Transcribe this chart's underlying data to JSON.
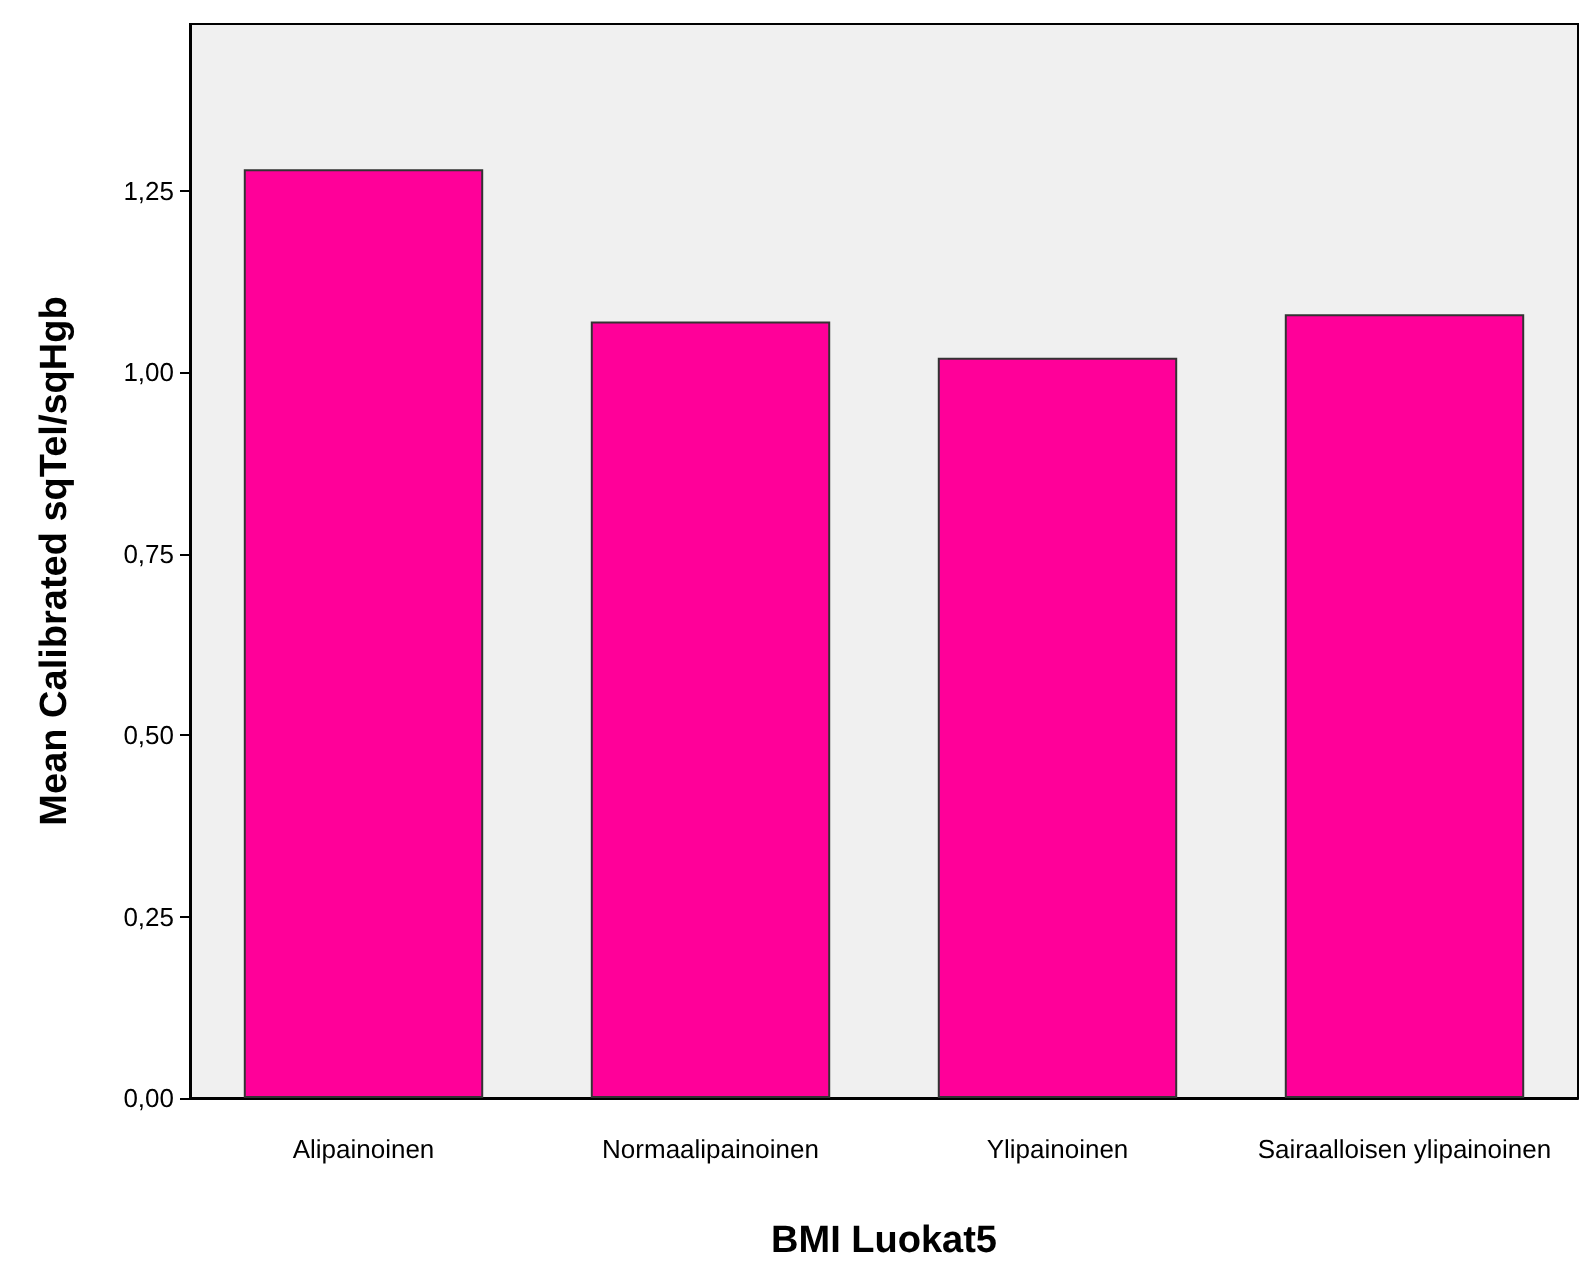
{
  "chart_data": {
    "type": "bar",
    "xlabel": "BMI Luokat5",
    "ylabel": "Mean Calibrated sqTel/sqHgb",
    "categories": [
      "Alipainoinen",
      "Normaalipainoinen",
      "Ylipainoinen",
      "Sairaalloisen ylipainoinen"
    ],
    "values": [
      1.28,
      1.07,
      1.02,
      1.08
    ],
    "color": "#ff0099",
    "ylim": [
      0,
      1.48
    ],
    "yticks": [
      {
        "value": 0,
        "label": "0,00"
      },
      {
        "value": 0.25,
        "label": "0,25"
      },
      {
        "value": 0.5,
        "label": "0,50"
      },
      {
        "value": 0.75,
        "label": "0,75"
      },
      {
        "value": 1,
        "label": "1,00"
      },
      {
        "value": 1.25,
        "label": "1,25"
      }
    ],
    "grid": false
  }
}
